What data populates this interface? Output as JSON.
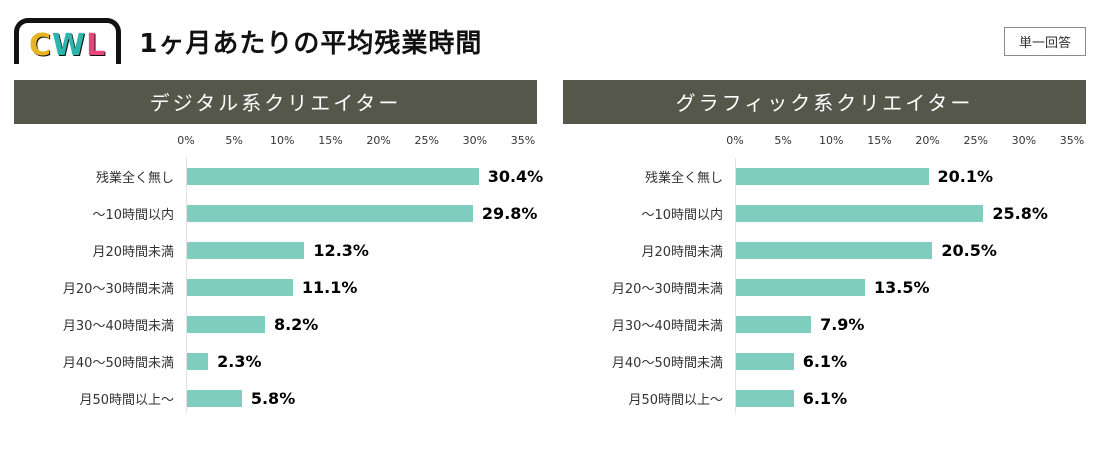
{
  "page": {
    "title": "1ヶ月あたりの平均残業時間",
    "badge": "単一回答",
    "logo": {
      "letters": [
        {
          "char": "C"
        },
        {
          "char": "W"
        },
        {
          "char": "L"
        }
      ]
    },
    "colors": {
      "bar": "#7ecdbf",
      "panel_header_bg": "#545749",
      "logo_c": "#e6b422",
      "logo_w": "#2cb5aa",
      "logo_l": "#e8457d"
    }
  },
  "chart_data": [
    {
      "type": "bar",
      "orientation": "horizontal",
      "title": "デジタル系クリエイター",
      "categories": [
        "残業全く無し",
        "〜10時間以内",
        "月20時間未満",
        "月20〜30時間未満",
        "月30〜40時間未満",
        "月40〜50時間未満",
        "月50時間以上〜"
      ],
      "values": [
        30.4,
        29.8,
        12.3,
        11.1,
        8.2,
        2.3,
        5.8
      ],
      "value_labels": [
        "30.4%",
        "29.8%",
        "12.3%",
        "11.1%",
        "8.2%",
        "2.3%",
        "5.8%"
      ],
      "axis_ticks": [
        "0%",
        "5%",
        "10%",
        "15%",
        "20%",
        "25%",
        "30%",
        "35%"
      ],
      "xlim": [
        0,
        35
      ],
      "grid": false,
      "legend": "none"
    },
    {
      "type": "bar",
      "orientation": "horizontal",
      "title": "グラフィック系クリエイター",
      "categories": [
        "残業全く無し",
        "〜10時間以内",
        "月20時間未満",
        "月20〜30時間未満",
        "月30〜40時間未満",
        "月40〜50時間未満",
        "月50時間以上〜"
      ],
      "values": [
        20.1,
        25.8,
        20.5,
        13.5,
        7.9,
        6.1,
        6.1
      ],
      "value_labels": [
        "20.1%",
        "25.8%",
        "20.5%",
        "13.5%",
        "7.9%",
        "6.1%",
        "6.1%"
      ],
      "axis_ticks": [
        "0%",
        "5%",
        "10%",
        "15%",
        "20%",
        "25%",
        "30%",
        "35%"
      ],
      "xlim": [
        0,
        35
      ],
      "grid": false,
      "legend": "none"
    }
  ]
}
